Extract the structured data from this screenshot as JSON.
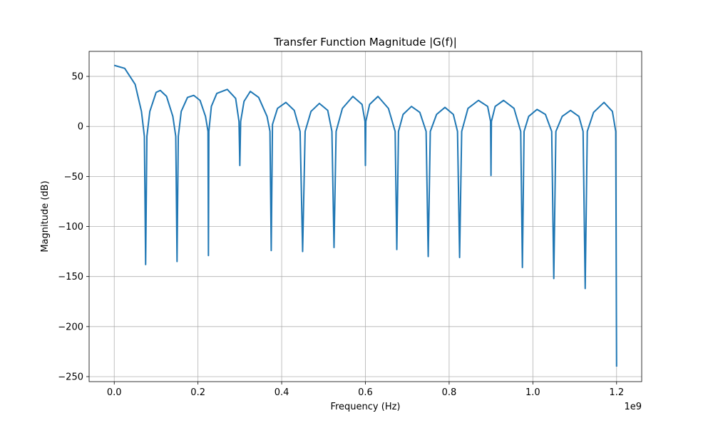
{
  "chart_data": {
    "type": "line",
    "title": "Transfer Function Magnitude |G(f)|",
    "xlabel": "Frequency (Hz)",
    "ylabel": "Magnitude (dB)",
    "x_offset_label": "1e9",
    "xlim": [
      -0.06,
      1.26
    ],
    "ylim": [
      -255,
      75
    ],
    "x_ticks": [
      0.0,
      0.2,
      0.4,
      0.6,
      0.8,
      1.0,
      1.2
    ],
    "x_tick_labels": [
      "0.0",
      "0.2",
      "0.4",
      "0.6",
      "0.8",
      "1.0",
      "1.2"
    ],
    "y_ticks": [
      50,
      0,
      -50,
      -100,
      -150,
      -200,
      -250
    ],
    "y_tick_labels": [
      "50",
      "0",
      "−50",
      "−100",
      "−150",
      "−200",
      "−250"
    ],
    "grid": true,
    "series": [
      {
        "color": "#1f77b4",
        "x": [
          0.0,
          0.025,
          0.05,
          0.065,
          0.072,
          0.075,
          0.078,
          0.085,
          0.1,
          0.11,
          0.125,
          0.14,
          0.147,
          0.15,
          0.153,
          0.16,
          0.175,
          0.19,
          0.205,
          0.218,
          0.224,
          0.225,
          0.226,
          0.232,
          0.245,
          0.27,
          0.29,
          0.298,
          0.3,
          0.302,
          0.31,
          0.325,
          0.345,
          0.365,
          0.372,
          0.375,
          0.378,
          0.39,
          0.41,
          0.43,
          0.444,
          0.45,
          0.456,
          0.47,
          0.49,
          0.51,
          0.52,
          0.525,
          0.53,
          0.545,
          0.57,
          0.592,
          0.599,
          0.6,
          0.601,
          0.61,
          0.63,
          0.655,
          0.671,
          0.675,
          0.679,
          0.69,
          0.71,
          0.73,
          0.745,
          0.75,
          0.755,
          0.77,
          0.79,
          0.81,
          0.82,
          0.825,
          0.83,
          0.845,
          0.87,
          0.892,
          0.899,
          0.9,
          0.901,
          0.91,
          0.93,
          0.955,
          0.971,
          0.975,
          0.979,
          0.99,
          1.01,
          1.03,
          1.045,
          1.05,
          1.055,
          1.07,
          1.09,
          1.11,
          1.12,
          1.125,
          1.13,
          1.145,
          1.17,
          1.19,
          1.198,
          1.2
        ],
        "y": [
          61,
          58,
          42,
          15,
          -10,
          -138,
          -10,
          15,
          34,
          36,
          30,
          10,
          -10,
          -135,
          -10,
          15,
          29,
          31,
          26,
          10,
          -5,
          -129,
          -5,
          20,
          33,
          37,
          28,
          5,
          -39,
          5,
          25,
          35,
          29,
          10,
          -5,
          -124,
          2,
          18,
          24,
          16,
          -5,
          -125,
          -5,
          15,
          23,
          16,
          -5,
          -121,
          -5,
          18,
          30,
          22,
          5,
          -39,
          5,
          22,
          30,
          18,
          -5,
          -123,
          -5,
          12,
          20,
          14,
          -5,
          -130,
          -5,
          12,
          19,
          12,
          -5,
          -131,
          -5,
          18,
          26,
          20,
          5,
          -49,
          5,
          20,
          26,
          18,
          -5,
          -141,
          -5,
          10,
          17,
          12,
          -5,
          -152,
          -5,
          10,
          16,
          10,
          -5,
          -162,
          -5,
          14,
          24,
          15,
          -5,
          -240
        ]
      }
    ]
  }
}
